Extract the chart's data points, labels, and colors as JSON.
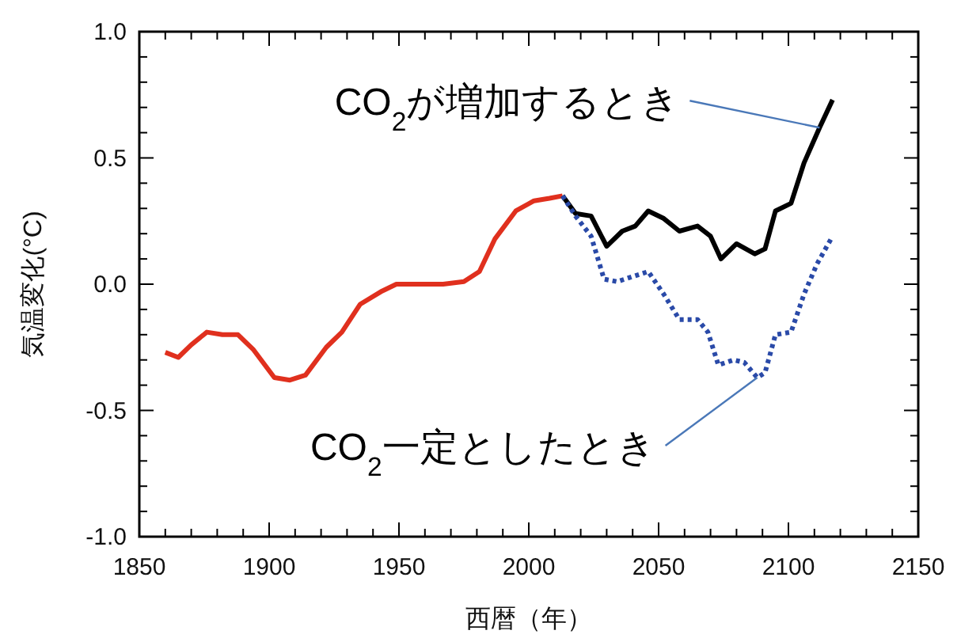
{
  "chart_data": {
    "type": "line",
    "xlabel": "西暦（年）",
    "ylabel": "気温変化(°C)",
    "xlim": [
      1850,
      2150
    ],
    "ylim": [
      -1.0,
      1.0
    ],
    "xticks": [
      1850,
      {
        "value": 1860,
        "label": null
      },
      {
        "value": 1870,
        "label": null
      },
      {
        "value": 1880,
        "label": null
      },
      {
        "value": 1890,
        "label": null
      },
      1900,
      {
        "value": 1910,
        "label": null
      },
      {
        "value": 1920,
        "label": null
      },
      {
        "value": 1930,
        "label": null
      },
      {
        "value": 1940,
        "label": null
      },
      1950,
      {
        "value": 1960,
        "label": null
      },
      {
        "value": 1970,
        "label": null
      },
      {
        "value": 1980,
        "label": null
      },
      {
        "value": 1990,
        "label": null
      },
      2000,
      {
        "value": 2010,
        "label": null
      },
      {
        "value": 2020,
        "label": null
      },
      {
        "value": 2030,
        "label": null
      },
      {
        "value": 2040,
        "label": null
      },
      2050,
      {
        "value": 2060,
        "label": null
      },
      {
        "value": 2070,
        "label": null
      },
      {
        "value": 2080,
        "label": null
      },
      {
        "value": 2090,
        "label": null
      },
      2100,
      {
        "value": 2110,
        "label": null
      },
      {
        "value": 2120,
        "label": null
      },
      {
        "value": 2130,
        "label": null
      },
      {
        "value": 2140,
        "label": null
      },
      2150
    ],
    "yticks": [
      {
        "value": -1.0,
        "label": "-1.0"
      },
      {
        "value": -0.9,
        "label": null
      },
      {
        "value": -0.8,
        "label": null
      },
      {
        "value": -0.7,
        "label": null
      },
      {
        "value": -0.6,
        "label": null
      },
      {
        "value": -0.5,
        "label": "-0.5"
      },
      {
        "value": -0.4,
        "label": null
      },
      {
        "value": -0.3,
        "label": null
      },
      {
        "value": -0.2,
        "label": null
      },
      {
        "value": -0.1,
        "label": null
      },
      {
        "value": 0.0,
        "label": "0.0"
      },
      {
        "value": 0.1,
        "label": null
      },
      {
        "value": 0.2,
        "label": null
      },
      {
        "value": 0.3,
        "label": null
      },
      {
        "value": 0.4,
        "label": null
      },
      {
        "value": 0.5,
        "label": "0.5"
      },
      {
        "value": 0.6,
        "label": null
      },
      {
        "value": 0.7,
        "label": null
      },
      {
        "value": 0.8,
        "label": null
      },
      {
        "value": 0.9,
        "label": null
      },
      {
        "value": 1.0,
        "label": "1.0"
      }
    ],
    "series": [
      {
        "color": "#e0301e",
        "line_style": "solid",
        "x": [
          1860,
          1865,
          1870,
          1876,
          1882,
          1888,
          1894,
          1902,
          1908,
          1914,
          1922,
          1928,
          1935,
          1943,
          1949,
          1959,
          1967,
          1975,
          1981,
          1987,
          1995,
          2002,
          2008,
          2013
        ],
        "values": [
          -0.27,
          -0.29,
          -0.24,
          -0.19,
          -0.2,
          -0.2,
          -0.26,
          -0.37,
          -0.38,
          -0.36,
          -0.25,
          -0.19,
          -0.08,
          -0.03,
          0.0,
          0.0,
          0.0,
          0.01,
          0.05,
          0.18,
          0.29,
          0.33,
          0.34,
          0.35
        ]
      },
      {
        "color": "#000000",
        "line_style": "solid",
        "x": [
          2013,
          2018,
          2024,
          2030,
          2036,
          2041,
          2046,
          2052,
          2058,
          2065,
          2070,
          2074,
          2080,
          2087,
          2091,
          2095,
          2101,
          2106,
          2112,
          2117
        ],
        "values": [
          0.35,
          0.28,
          0.27,
          0.15,
          0.21,
          0.23,
          0.29,
          0.26,
          0.21,
          0.23,
          0.19,
          0.1,
          0.16,
          0.12,
          0.14,
          0.29,
          0.32,
          0.48,
          0.62,
          0.73
        ]
      },
      {
        "color": "#2a4aa8",
        "line_style": "dotted",
        "x": [
          2013,
          2018,
          2024,
          2029,
          2034,
          2040,
          2046,
          2052,
          2058,
          2065,
          2069,
          2073,
          2079,
          2083,
          2088,
          2091,
          2095,
          2101,
          2106,
          2111,
          2117
        ],
        "values": [
          0.35,
          0.27,
          0.19,
          0.02,
          0.01,
          0.03,
          0.05,
          -0.04,
          -0.14,
          -0.14,
          -0.19,
          -0.32,
          -0.3,
          -0.31,
          -0.37,
          -0.35,
          -0.2,
          -0.19,
          -0.04,
          0.08,
          0.19
        ]
      }
    ],
    "annotations": [
      {
        "text": "CO$_{2}$が増加するとき",
        "x": 2112,
        "y": 0.62
      },
      {
        "text": "CO$_{2}$一定としたとき",
        "x": 2088,
        "y": -0.37
      }
    ]
  }
}
